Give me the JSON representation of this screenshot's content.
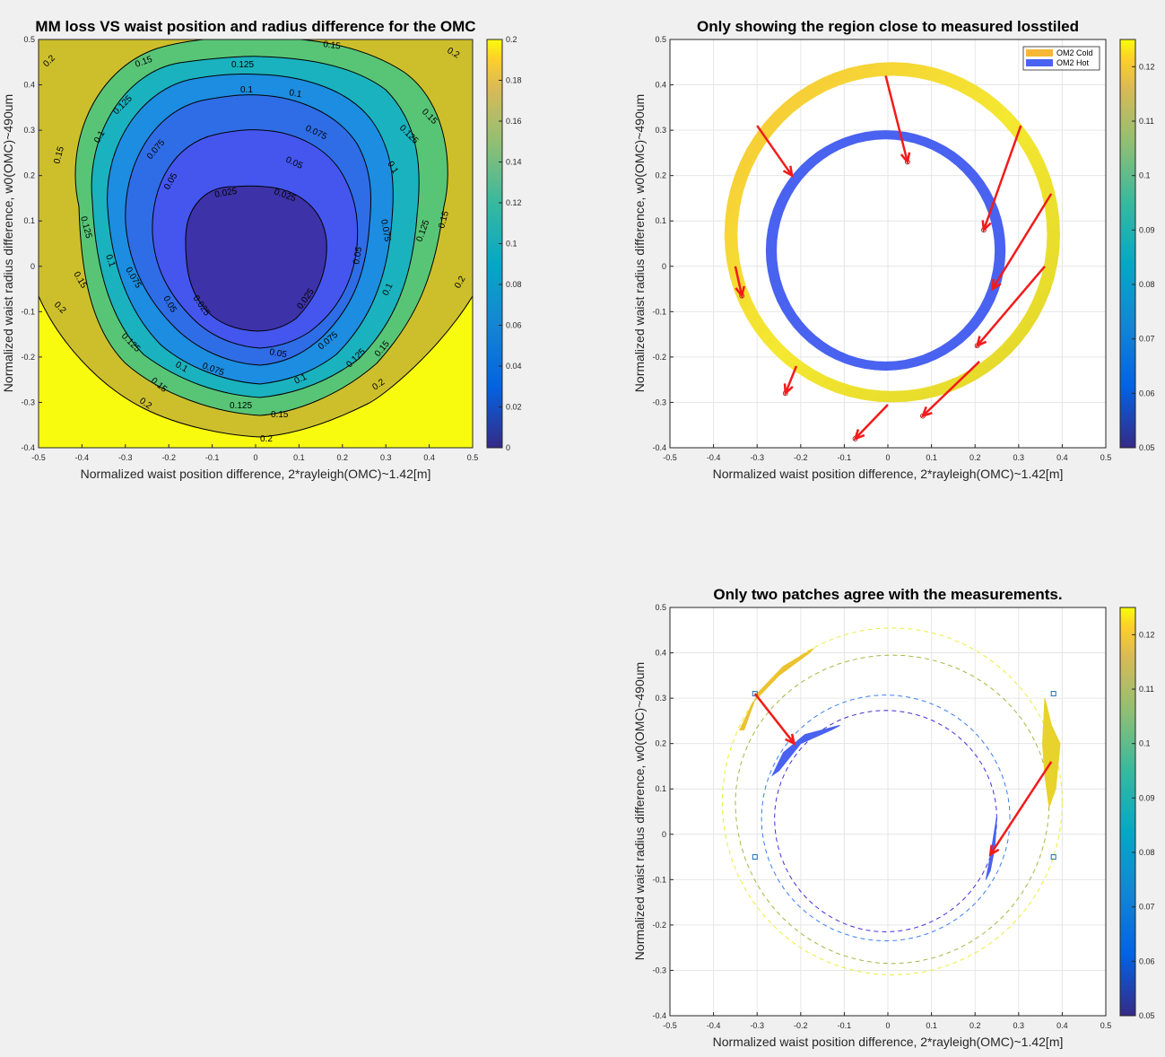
{
  "figure": {
    "background": "#f0f0f0"
  },
  "chart_data": [
    {
      "type": "contour",
      "title": "MM loss VS waist position and radius difference for the OMC",
      "xlabel": "Normalized waist position difference, 2*rayleigh(OMC)~1.42[m]",
      "ylabel": "Normalized waist radius difference, w0(OMC)~490um",
      "xlim": [
        -0.5,
        0.5
      ],
      "ylim": [
        -0.4,
        0.5
      ],
      "xticks": [
        "-0.5",
        "-0.4",
        "-0.3",
        "-0.2",
        "-0.1",
        "0",
        "0.1",
        "0.2",
        "0.3",
        "0.4",
        "0.5"
      ],
      "yticks": [
        "-0.4",
        "-0.3",
        "-0.2",
        "-0.1",
        "0",
        "0.1",
        "0.2",
        "0.3",
        "0.4",
        "0.5"
      ],
      "levels": [
        0.025,
        0.05,
        0.075,
        0.1,
        0.125,
        0.15,
        0.2
      ],
      "colorbar": {
        "range": [
          0,
          0.2
        ],
        "ticks": [
          "0",
          "0.02",
          "0.04",
          "0.06",
          "0.08",
          "0.1",
          "0.12",
          "0.14",
          "0.16",
          "0.18",
          "0.2"
        ]
      },
      "grid": false
    },
    {
      "type": "scatter",
      "title": "Only showing the region close to measured losstiled",
      "xlabel": "Normalized waist position difference, 2*rayleigh(OMC)~1.42[m]",
      "ylabel": "Normalized waist radius difference, w0(OMC)~490um",
      "xlim": [
        -0.5,
        0.5
      ],
      "ylim": [
        -0.4,
        0.5
      ],
      "xticks": [
        "-0.5",
        "-0.4",
        "-0.3",
        "-0.2",
        "-0.1",
        "0",
        "0.1",
        "0.2",
        "0.3",
        "0.4",
        "0.5"
      ],
      "yticks": [
        "-0.4",
        "-0.3",
        "-0.2",
        "-0.1",
        "0",
        "0.1",
        "0.2",
        "0.3",
        "0.4",
        "0.5"
      ],
      "grid": true,
      "legend": {
        "placement": "top-right",
        "entries": [
          {
            "name": "OM2 Cold",
            "color": "#f5b735"
          },
          {
            "name": "OM2 Hot",
            "color": "#4a62f0"
          }
        ]
      },
      "colorbar": {
        "range": [
          0.05,
          0.125
        ],
        "ticks": [
          "0.05",
          "0.06",
          "0.07",
          "0.08",
          "0.09",
          "0.1",
          "0.11",
          "0.12"
        ]
      },
      "series": [
        {
          "name": "OM2 Cold",
          "shape": "ring",
          "cx": 0.01,
          "cy": 0.07,
          "rx_outer": 0.385,
          "rx_inner": 0.355,
          "ry_top_outer": 0.38,
          "ry_top_inner": 0.35,
          "ry_bot_outer": 0.37,
          "ry_bot_inner": 0.345
        },
        {
          "name": "OM2 Hot",
          "shape": "ring",
          "cx": -0.005,
          "cy": 0.035,
          "rx_outer": 0.275,
          "rx_inner": 0.25,
          "ry_top_outer": 0.265,
          "ry_top_inner": 0.245,
          "ry_bot_outer": 0.265,
          "ry_bot_inner": 0.245
        }
      ],
      "arrows": [
        {
          "from": [
            -0.3,
            0.31
          ],
          "to": [
            -0.22,
            0.2
          ]
        },
        {
          "from": [
            -0.005,
            0.42
          ],
          "to": [
            0.045,
            0.23
          ]
        },
        {
          "from": [
            0.305,
            0.31
          ],
          "to": [
            0.22,
            0.08
          ]
        },
        {
          "from": [
            0.375,
            0.16
          ],
          "to": [
            0.24,
            -0.05
          ]
        },
        {
          "from": [
            0.36,
            -0.0
          ],
          "to": [
            0.205,
            -0.175
          ]
        },
        {
          "from": [
            0.21,
            -0.21
          ],
          "to": [
            0.08,
            -0.33
          ]
        },
        {
          "from": [
            -0.35,
            0.0
          ],
          "to": [
            -0.335,
            -0.065
          ]
        },
        {
          "from": [
            -0.21,
            -0.22
          ],
          "to": [
            -0.235,
            -0.28
          ]
        },
        {
          "from": [
            0.0,
            -0.305
          ],
          "to": [
            -0.075,
            -0.38
          ]
        }
      ],
      "markers": [
        {
          "x": 0.045,
          "y": 0.23
        },
        {
          "x": 0.22,
          "y": 0.08
        },
        {
          "x": -0.335,
          "y": -0.065
        },
        {
          "x": 0.205,
          "y": -0.175
        },
        {
          "x": -0.235,
          "y": -0.28
        },
        {
          "x": 0.08,
          "y": -0.33
        },
        {
          "x": -0.075,
          "y": -0.38
        }
      ]
    },
    {
      "type": "scatter",
      "title": "Only two patches agree with the measurements.",
      "xlabel": "Normalized waist position difference, 2*rayleigh(OMC)~1.42[m]",
      "ylabel": "Normalized waist radius difference, w0(OMC)~490um",
      "xlim": [
        -0.5,
        0.5
      ],
      "ylim": [
        -0.4,
        0.5
      ],
      "xticks": [
        "-0.5",
        "-0.4",
        "-0.3",
        "-0.2",
        "-0.1",
        "0",
        "0.1",
        "0.2",
        "0.3",
        "0.4",
        "0.5"
      ],
      "yticks": [
        "-0.4",
        "-0.3",
        "-0.2",
        "-0.1",
        "0",
        "0.1",
        "0.2",
        "0.3",
        "0.4",
        "0.5"
      ],
      "grid": true,
      "colorbar": {
        "range": [
          0.05,
          0.125
        ],
        "ticks": [
          "0.05",
          "0.06",
          "0.07",
          "0.08",
          "0.09",
          "0.1",
          "0.11",
          "0.12"
        ]
      },
      "dashed_rings": [
        {
          "cx": 0.01,
          "cy": 0.07,
          "rx": 0.39,
          "ryt": 0.385,
          "ryb": 0.38,
          "color": "#eded3a"
        },
        {
          "cx": 0.01,
          "cy": 0.07,
          "rx": 0.36,
          "ryt": 0.325,
          "ryb": 0.355,
          "color": "#a9b540"
        },
        {
          "cx": -0.005,
          "cy": 0.035,
          "rx": 0.285,
          "ryt": 0.272,
          "ryb": 0.27,
          "color": "#3c7ef0"
        },
        {
          "cx": -0.005,
          "cy": 0.035,
          "rx": 0.255,
          "ryt": 0.238,
          "ryb": 0.25,
          "color": "#4530d8"
        }
      ],
      "patches": [
        {
          "name": "cold-left",
          "points": [
            [
              -0.33,
              0.23
            ],
            [
              -0.3,
              0.31
            ],
            [
              -0.24,
              0.37
            ],
            [
              -0.17,
              0.41
            ],
            [
              -0.18,
              0.4
            ],
            [
              -0.25,
              0.35
            ],
            [
              -0.31,
              0.29
            ],
            [
              -0.34,
              0.23
            ]
          ],
          "color": "#ecc230"
        },
        {
          "name": "cold-right",
          "points": [
            [
              0.36,
              0.3
            ],
            [
              0.375,
              0.24
            ],
            [
              0.395,
              0.2
            ],
            [
              0.385,
              0.1
            ],
            [
              0.37,
              0.06
            ],
            [
              0.36,
              0.13
            ],
            [
              0.355,
              0.2
            ]
          ],
          "color": "#e8d22c"
        },
        {
          "name": "hot-left",
          "points": [
            [
              -0.265,
              0.13
            ],
            [
              -0.24,
              0.18
            ],
            [
              -0.19,
              0.22
            ],
            [
              -0.11,
              0.24
            ],
            [
              -0.13,
              0.23
            ],
            [
              -0.2,
              0.2
            ],
            [
              -0.25,
              0.14
            ]
          ],
          "color": "#4a62f0"
        },
        {
          "name": "hot-right",
          "points": [
            [
              0.225,
              -0.1
            ],
            [
              0.235,
              -0.05
            ],
            [
              0.25,
              0.04
            ],
            [
              0.245,
              -0.03
            ],
            [
              0.235,
              -0.08
            ]
          ],
          "color": "#4a62f0"
        }
      ],
      "arrows": [
        {
          "from": [
            -0.305,
            0.31
          ],
          "to": [
            -0.215,
            0.2
          ]
        },
        {
          "from": [
            0.375,
            0.16
          ],
          "to": [
            0.235,
            -0.045
          ]
        }
      ],
      "markers": [
        {
          "x": -0.305,
          "y": 0.31
        },
        {
          "x": 0.38,
          "y": 0.31
        },
        {
          "x": -0.305,
          "y": -0.05
        },
        {
          "x": 0.38,
          "y": -0.05
        }
      ]
    }
  ]
}
